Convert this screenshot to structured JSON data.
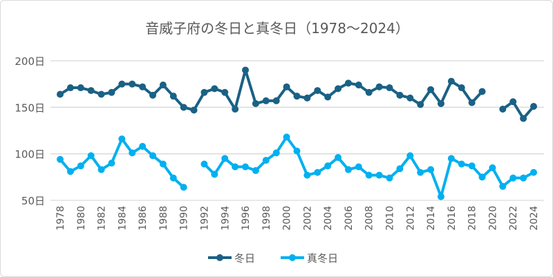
{
  "chart_data": {
    "type": "line",
    "title": "音威子府の冬日と真冬日（1978～2024）",
    "xlabel": "",
    "ylabel": "",
    "ylim": [
      50,
      200
    ],
    "yticks": [
      "50日",
      "100日",
      "150日",
      "200日"
    ],
    "ytick_values": [
      50,
      100,
      150,
      200
    ],
    "grid": true,
    "legend": "bottom",
    "x": [
      1978,
      1979,
      1980,
      1981,
      1982,
      1983,
      1984,
      1985,
      1986,
      1987,
      1988,
      1989,
      1990,
      1991,
      1992,
      1993,
      1994,
      1995,
      1996,
      1997,
      1998,
      1999,
      2000,
      2001,
      2002,
      2003,
      2004,
      2005,
      2006,
      2007,
      2008,
      2009,
      2010,
      2011,
      2012,
      2013,
      2014,
      2015,
      2016,
      2017,
      2018,
      2019,
      2020,
      2021,
      2022,
      2023,
      2024
    ],
    "xtick_labels": [
      "1978",
      "1980",
      "1982",
      "1984",
      "1986",
      "1988",
      "1990",
      "1992",
      "1994",
      "1996",
      "1998",
      "2000",
      "2002",
      "2004",
      "2006",
      "2008",
      "2010",
      "2012",
      "2014",
      "2016",
      "2018",
      "2020",
      "2022",
      "2024"
    ],
    "series": [
      {
        "name": "冬日",
        "color": "#1a6185",
        "values": [
          164,
          171,
          171,
          168,
          164,
          166,
          175,
          175,
          172,
          163,
          174,
          162,
          150,
          147,
          166,
          170,
          166,
          148,
          190,
          154,
          157,
          157,
          172,
          162,
          160,
          168,
          161,
          170,
          176,
          174,
          166,
          172,
          171,
          163,
          160,
          153,
          169,
          154,
          178,
          171,
          155,
          167,
          null,
          148,
          156,
          138,
          151
        ]
      },
      {
        "name": "真冬日",
        "color": "#00b0f0",
        "values": [
          94,
          81,
          87,
          98,
          83,
          90,
          116,
          101,
          108,
          98,
          89,
          74,
          64,
          null,
          89,
          78,
          95,
          86,
          86,
          82,
          93,
          101,
          118,
          103,
          77,
          80,
          87,
          96,
          83,
          86,
          77,
          77,
          74,
          84,
          98,
          80,
          83,
          54,
          95,
          89,
          87,
          75,
          85,
          65,
          74,
          74,
          80
        ]
      }
    ]
  }
}
